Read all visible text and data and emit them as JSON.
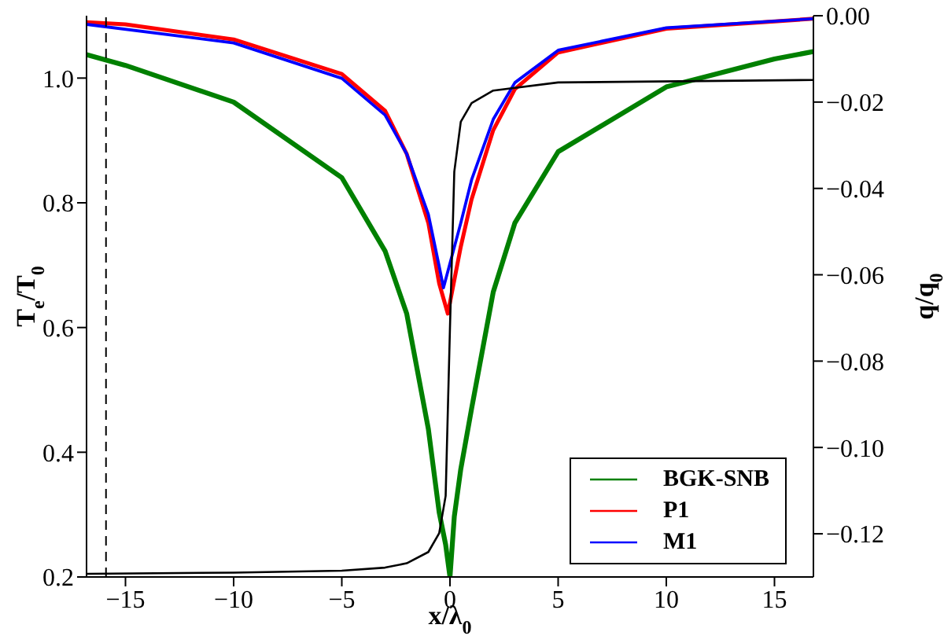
{
  "chart_data": {
    "type": "line",
    "xlabel": "x/λ$_{0}$",
    "ylabel": "T$_{e}$/T$_{0}$",
    "y2label": "q/q$_{0}$",
    "xlim": [
      -16.8,
      16.8
    ],
    "xticks": [
      {
        "value": -15,
        "label": "−15"
      },
      {
        "value": -10,
        "label": "−10"
      },
      {
        "value": -5,
        "label": "−5"
      },
      0,
      5,
      10,
      15
    ],
    "ylim": [
      0.2,
      1.1
    ],
    "yticks": [
      0.2,
      0.4,
      0.6,
      0.8,
      {
        "value": 1,
        "label": "1.0"
      }
    ],
    "y2lim": [
      -0.13,
      0
    ],
    "y2ticks": [
      {
        "value": 0,
        "label": "0.00"
      },
      {
        "value": -0.02,
        "label": "−0.02"
      },
      {
        "value": -0.04,
        "label": "−0.04"
      },
      {
        "value": -0.06,
        "label": "−0.06"
      },
      {
        "value": -0.08,
        "label": "−0.08"
      },
      {
        "value": -0.1,
        "label": "−0.10"
      },
      {
        "value": -0.12,
        "label": "−0.12"
      }
    ],
    "series": [
      {
        "name": "BGK-SNB",
        "color": "#008000",
        "axis": "y2",
        "x": [
          -16.8,
          -15,
          -10,
          -5,
          -3,
          -2,
          -1,
          -0.5,
          -0.2,
          0,
          0.2,
          0.5,
          1,
          2,
          3,
          5,
          10,
          15,
          16.8
        ],
        "values": [
          -0.009,
          -0.0115,
          -0.02,
          -0.0375,
          -0.0545,
          -0.069,
          -0.0957,
          -0.115,
          -0.1225,
          -0.13,
          -0.116,
          -0.105,
          -0.091,
          -0.064,
          -0.048,
          -0.0315,
          -0.0165,
          -0.01,
          -0.0083
        ]
      },
      {
        "name": "P1",
        "color": "#ff0000",
        "axis": "y2",
        "x": [
          -16.8,
          -15,
          -10,
          -5,
          -3,
          -2,
          -1,
          -0.5,
          -0.1,
          0.5,
          1,
          2,
          3,
          5,
          10,
          16.8
        ],
        "values": [
          -0.0015,
          -0.002,
          -0.0055,
          -0.0135,
          -0.022,
          -0.032,
          -0.048,
          -0.062,
          -0.069,
          -0.0535,
          -0.0425,
          -0.0265,
          -0.017,
          -0.0085,
          -0.003,
          -0.0007
        ]
      },
      {
        "name": "M1",
        "color": "#0000ff",
        "axis": "y2",
        "x": [
          -16.8,
          -10,
          -5,
          -3,
          -2,
          -1,
          -0.5,
          -0.3,
          0.5,
          1,
          2,
          3,
          5,
          10,
          16.8
        ],
        "values": [
          -0.002,
          -0.0063,
          -0.0145,
          -0.023,
          -0.032,
          -0.046,
          -0.058,
          -0.063,
          -0.048,
          -0.038,
          -0.024,
          -0.0155,
          -0.008,
          -0.0028,
          -0.0007
        ]
      },
      {
        "color": "#000000",
        "axis": "y",
        "x": [
          -16.8,
          -10,
          -5,
          -3,
          -2,
          -1,
          -0.5,
          -0.2,
          0,
          0.2,
          0.5,
          1,
          2,
          5,
          16.8
        ],
        "values": [
          0.205,
          0.207,
          0.21,
          0.215,
          0.222,
          0.24,
          0.27,
          0.33,
          0.6,
          0.85,
          0.93,
          0.96,
          0.98,
          0.993,
          0.997
        ]
      }
    ],
    "ref_lines": [
      {
        "axis": "x",
        "value": -15.9,
        "color": "#000000",
        "line_style": "dashed"
      }
    ],
    "legend": "bottom right",
    "grid": false,
    "marker": "none",
    "line_style": "solid"
  }
}
